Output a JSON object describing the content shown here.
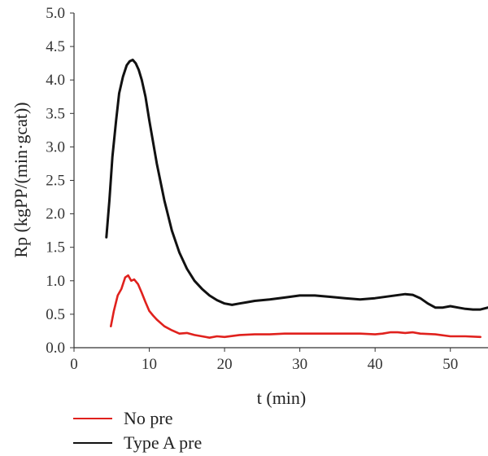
{
  "chart_data": {
    "type": "line",
    "xlabel": "t (min)",
    "ylabel": "Rp (kgPP/(min·gcat))",
    "xlim": [
      0,
      55
    ],
    "ylim": [
      0,
      5.0
    ],
    "xticks": [
      "0",
      "10",
      "20",
      "30",
      "40",
      "50"
    ],
    "yticks": [
      "0.0",
      "0.5",
      "1.0",
      "1.5",
      "2.0",
      "2.5",
      "3.0",
      "3.5",
      "4.0",
      "4.5",
      "5.0"
    ],
    "grid": false,
    "legend_position": "bottom-left",
    "series": [
      {
        "name": "No pre",
        "color": "#e0211d",
        "x": [
          4.9,
          5.3,
          5.8,
          6.3,
          6.8,
          7.2,
          7.6,
          8.0,
          8.5,
          9.0,
          9.5,
          10.0,
          10.5,
          11,
          12,
          13,
          14,
          15,
          16,
          17,
          18,
          19,
          20,
          22,
          24,
          26,
          28,
          30,
          32,
          34,
          36,
          38,
          40,
          41,
          42,
          43,
          44,
          45,
          46,
          48,
          50,
          52,
          54
        ],
        "y": [
          0.32,
          0.55,
          0.78,
          0.88,
          1.05,
          1.08,
          1.0,
          1.02,
          0.95,
          0.82,
          0.68,
          0.55,
          0.48,
          0.42,
          0.32,
          0.26,
          0.21,
          0.22,
          0.19,
          0.17,
          0.15,
          0.17,
          0.16,
          0.19,
          0.2,
          0.2,
          0.21,
          0.21,
          0.21,
          0.21,
          0.21,
          0.21,
          0.2,
          0.21,
          0.23,
          0.23,
          0.22,
          0.23,
          0.21,
          0.2,
          0.17,
          0.17,
          0.16
        ]
      },
      {
        "name": "Type A pre",
        "color": "#111111",
        "x": [
          4.3,
          4.7,
          5.1,
          5.6,
          6.0,
          6.5,
          7.0,
          7.4,
          7.8,
          8.2,
          8.6,
          9.0,
          9.5,
          10,
          11,
          12,
          13,
          14,
          15,
          16,
          17,
          18,
          19,
          20,
          21,
          22,
          23,
          24,
          26,
          28,
          30,
          32,
          34,
          36,
          38,
          40,
          42,
          44,
          45,
          46,
          47,
          48,
          49,
          50,
          51,
          52,
          53,
          54,
          55
        ],
        "y": [
          1.65,
          2.2,
          2.85,
          3.4,
          3.8,
          4.05,
          4.22,
          4.28,
          4.3,
          4.25,
          4.15,
          4.0,
          3.75,
          3.4,
          2.75,
          2.2,
          1.75,
          1.42,
          1.18,
          1.0,
          0.88,
          0.78,
          0.71,
          0.66,
          0.64,
          0.66,
          0.68,
          0.7,
          0.72,
          0.75,
          0.78,
          0.78,
          0.76,
          0.74,
          0.72,
          0.74,
          0.77,
          0.8,
          0.79,
          0.74,
          0.66,
          0.6,
          0.6,
          0.62,
          0.6,
          0.58,
          0.57,
          0.57,
          0.6
        ]
      }
    ]
  }
}
